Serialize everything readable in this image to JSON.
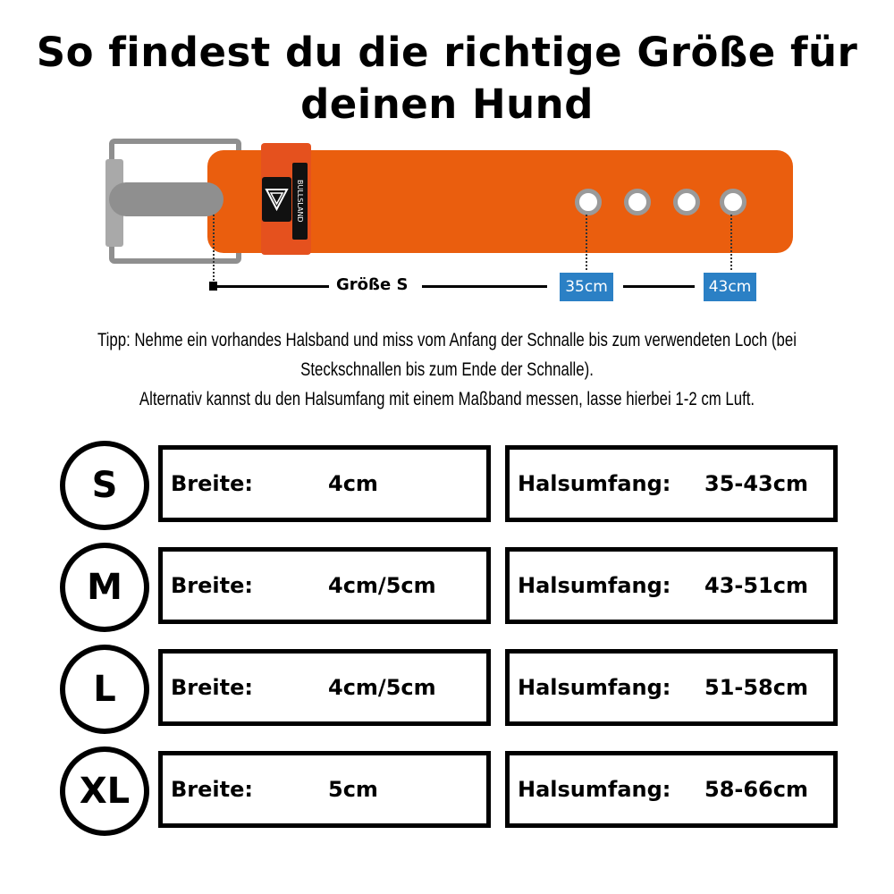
{
  "title": {
    "line1": "So findest du die richtige Größe für",
    "line2": "deinen Hund"
  },
  "belt": {
    "brand_logo_text": "BULLSLAND",
    "size_label": "Größe S",
    "min_label": "35cm",
    "max_label": "43cm",
    "strap_color": "#EA5E0E",
    "label_box_color": "#2B80C5"
  },
  "tip": {
    "line1": "Tipp: Nehme ein vorhandes Halsband und miss vom Anfang der Schnalle bis zum verwendeten Loch (bei",
    "line2": "Steckschnallen bis zum Ende der Schnalle).",
    "line3": "Alternativ kannst du den Halsumfang mit einem Maßband messen, lasse hierbei 1-2 cm Luft."
  },
  "sizes": [
    {
      "size": "S",
      "width_label": "Breite:",
      "width": "4cm",
      "neck_label": "Halsumfang:",
      "neck": "35-43cm"
    },
    {
      "size": "M",
      "width_label": "Breite:",
      "width": "4cm/5cm",
      "neck_label": "Halsumfang:",
      "neck": "43-51cm"
    },
    {
      "size": "L",
      "width_label": "Breite:",
      "width": "4cm/5cm",
      "neck_label": "Halsumfang:",
      "neck": "51-58cm"
    },
    {
      "size": "XL",
      "width_label": "Breite:",
      "width": "5cm",
      "neck_label": "Halsumfang:",
      "neck": "58-66cm"
    }
  ]
}
